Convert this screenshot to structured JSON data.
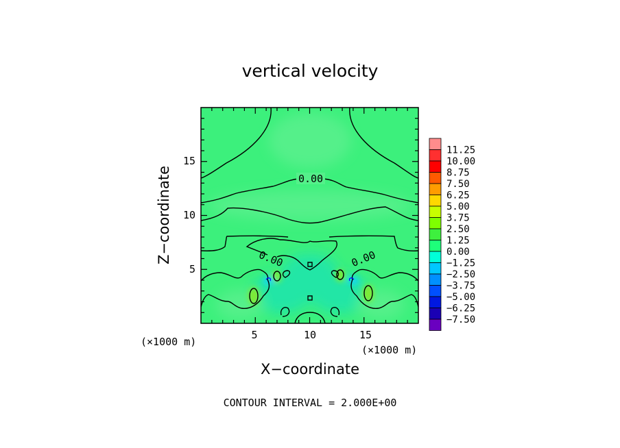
{
  "chart_data": {
    "type": "heatmap",
    "title": "vertical velocity",
    "xlabel": "X−coordinate",
    "ylabel": "Z−coordinate",
    "x_unit": "(×1000 m)",
    "z_unit": "(×1000 m)",
    "xlim": [
      0,
      20
    ],
    "ylim": [
      0,
      20
    ],
    "x_ticks": [
      "5",
      "10",
      "15"
    ],
    "y_ticks": [
      "5",
      "10",
      "15"
    ],
    "contour_labels": [
      "0.00",
      "0.00",
      "0.00"
    ],
    "footer": "CONTOUR INTERVAL = 2.000E+00",
    "colorbar": {
      "labels": [
        "11.25",
        "10.00",
        "8.75",
        "7.50",
        "6.25",
        "5.00",
        "3.75",
        "2.50",
        "1.25",
        "0.00",
        "−1.25",
        "−2.50",
        "−3.75",
        "−5.00",
        "−6.25",
        "−7.50"
      ],
      "colors": [
        "#ff8c8c",
        "#ff3030",
        "#ff0000",
        "#ff5a00",
        "#ff9c00",
        "#ffd800",
        "#c8ff00",
        "#7eff00",
        "#3ef03e",
        "#1eff7a",
        "#00ffd8",
        "#00c8ff",
        "#0090ff",
        "#0050ff",
        "#0018e0",
        "#1a00b4",
        "#6a00c0"
      ]
    },
    "fields": {
      "background": "#3cf07c",
      "upper_band": "#54f08a",
      "lower_band": "#22e6a6",
      "updraft_core": "#80ea30",
      "downdraft_core": "#12d8ea"
    }
  }
}
